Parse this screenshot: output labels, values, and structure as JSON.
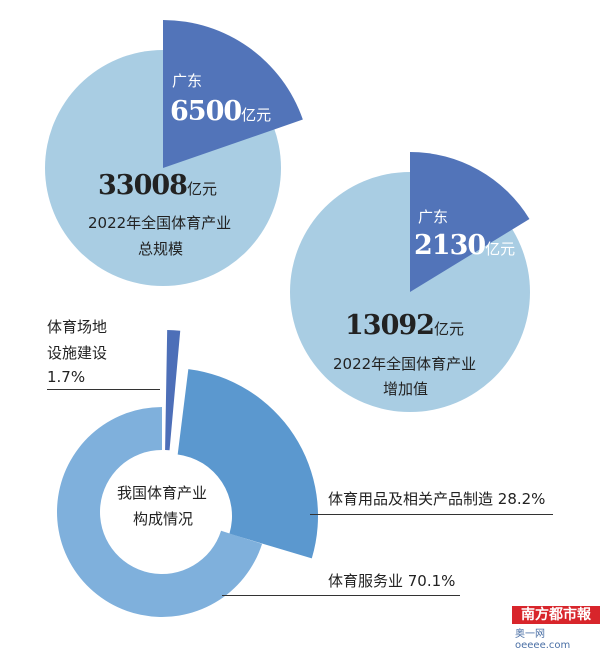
{
  "colors": {
    "circle": "#a9cde3",
    "wedge": "#5274b9",
    "services": "#7fb0dc",
    "manufacturing": "#5b98cf",
    "venues": "#4d6fb8"
  },
  "chart_data": [
    {
      "type": "pie",
      "title": "2022年全国体育产业总规模",
      "total": 33008,
      "total_label": "33008",
      "unit": "亿元",
      "highlight": {
        "name": "广东",
        "value": 6500,
        "value_label": "6500"
      },
      "subtitle": [
        "2022年全国体育产业",
        "总规模"
      ]
    },
    {
      "type": "pie",
      "title": "2022年全国体育产业增加值",
      "total": 13092,
      "total_label": "13092",
      "unit": "亿元",
      "highlight": {
        "name": "广东",
        "value": 2130,
        "value_label": "2130"
      },
      "subtitle": [
        "2022年全国体育产业",
        "增加值"
      ]
    },
    {
      "type": "pie",
      "title": "我国体育产业构成情况",
      "center_label": [
        "我国体育产业",
        "构成情况"
      ],
      "slices": [
        {
          "name": "体育场地设施建设",
          "value": 1.7,
          "label_lines": [
            "体育场地",
            "设施建设",
            "1.7%"
          ]
        },
        {
          "name": "体育用品及相关产品制造",
          "value": 28.2,
          "label": "体育用品及相关产品制造  28.2%"
        },
        {
          "name": "体育服务业",
          "value": 70.1,
          "label": "体育服务业  70.1%"
        }
      ]
    }
  ],
  "watermark": {
    "logo": "南方都市報",
    "site": "奥一网oeeee.com"
  }
}
